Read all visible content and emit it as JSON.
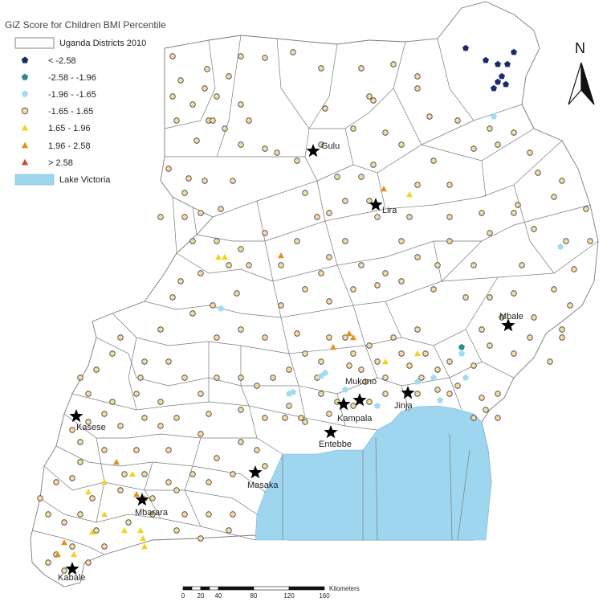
{
  "title": "GiZ Score for Children BMI Percentile",
  "legend": [
    {
      "label": "Uganda Districts 2010",
      "symbol": "rect-outline",
      "color": "#ffffff"
    },
    {
      "label": "< -2.58",
      "symbol": "pentagon",
      "color": "#1c2a6b"
    },
    {
      "label": "-2.58 - -1.96",
      "symbol": "pentagon",
      "color": "#2e8b8b"
    },
    {
      "label": "-1.96 - -1.65",
      "symbol": "pentagon",
      "color": "#9fdcf2"
    },
    {
      "label": "-1.65 - 1.65",
      "symbol": "circle",
      "color": "#f3dca0"
    },
    {
      "label": "1.65 - 1.96",
      "symbol": "triangle",
      "color": "#f2d21c"
    },
    {
      "label": "1.96 - 2.58",
      "symbol": "triangle",
      "color": "#e0901e"
    },
    {
      "label": "> 2.58",
      "symbol": "triangle",
      "color": "#c0502a"
    },
    {
      "label": "Lake Victoria",
      "symbol": "rect-fill",
      "color": "#9fd6ef"
    }
  ],
  "north_label": "N",
  "cities": [
    {
      "name": "Gulu"
    },
    {
      "name": "Lira"
    },
    {
      "name": "Mbale"
    },
    {
      "name": "Mukono"
    },
    {
      "name": "Kampala"
    },
    {
      "name": "Jinja"
    },
    {
      "name": "Entebbe"
    },
    {
      "name": "Kasese"
    },
    {
      "name": "Masaka"
    },
    {
      "name": "Mbarara"
    },
    {
      "name": "Kabale"
    }
  ],
  "scale": {
    "ticks": [
      "0",
      "20",
      "40",
      "80",
      "120",
      "160"
    ],
    "unit": "Kilometers"
  },
  "colors": {
    "district_stroke": "#7a7a7a",
    "lake": "#9fd6ef",
    "background": "#ffffff"
  }
}
